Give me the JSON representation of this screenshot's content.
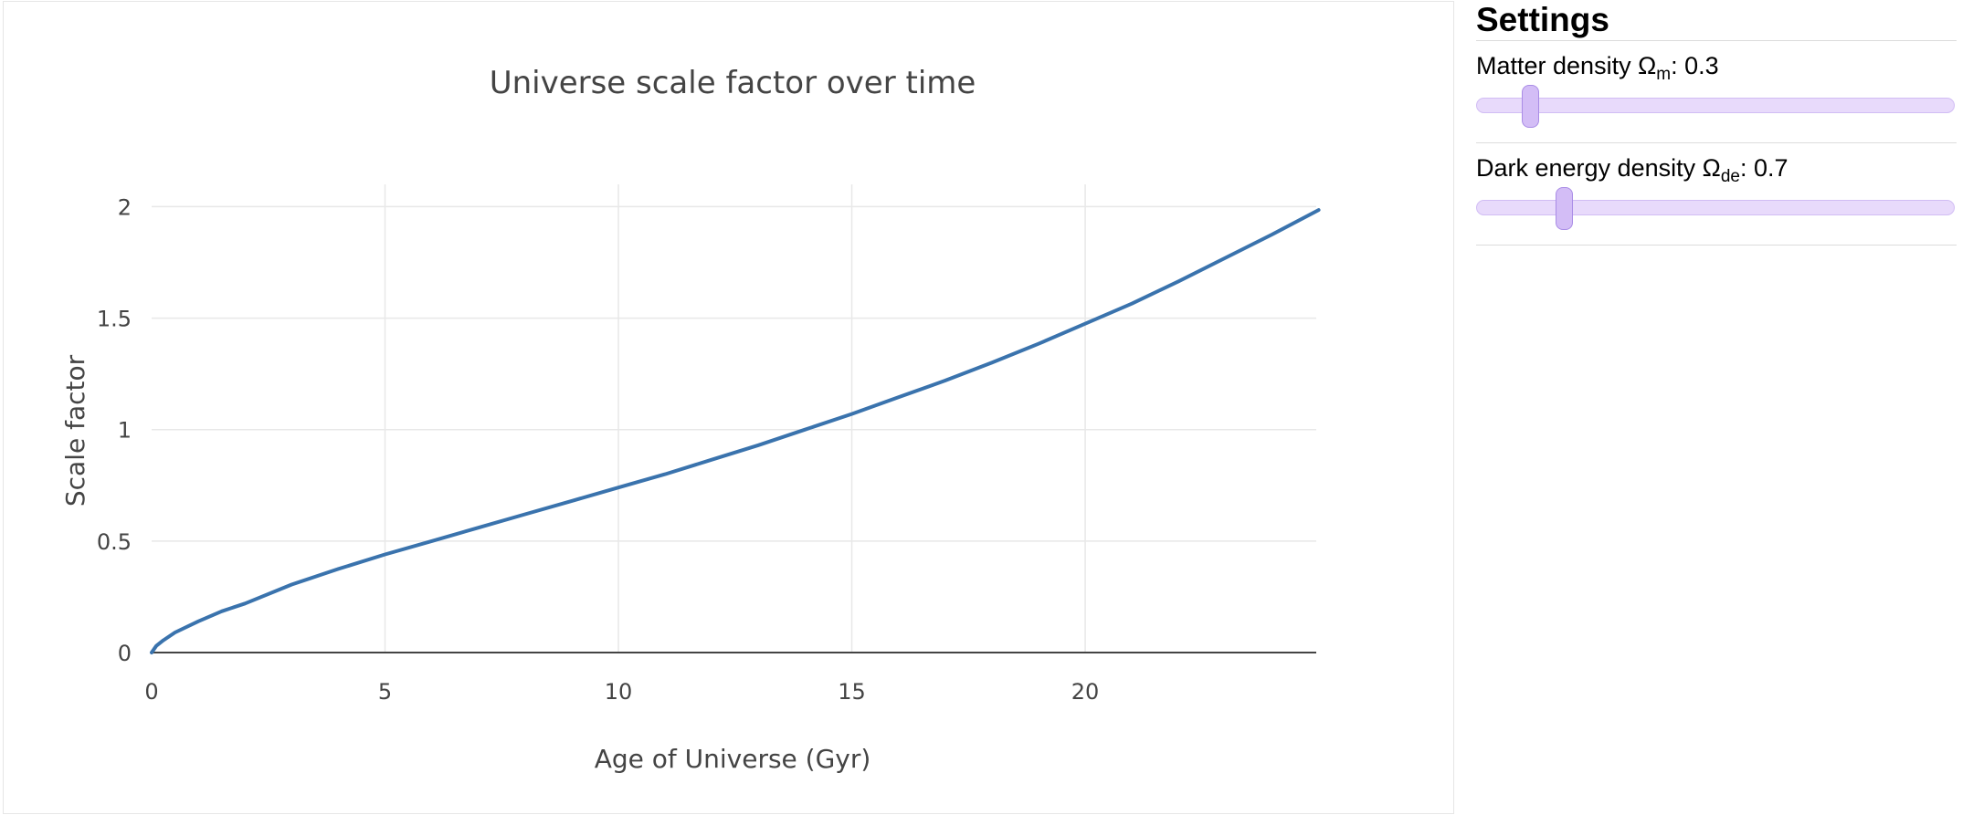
{
  "chart_data": {
    "type": "line",
    "title": "Universe scale factor over time",
    "xlabel": "Age of Universe (Gyr)",
    "ylabel": "Scale factor",
    "xlim": [
      0,
      25
    ],
    "ylim": [
      0,
      2.1
    ],
    "x_ticks": [
      0,
      5,
      10,
      15,
      20
    ],
    "x_tick_labels": [
      "0",
      "5",
      "10",
      "15",
      "20"
    ],
    "y_ticks": [
      0,
      0.5,
      1,
      1.5,
      2
    ],
    "y_tick_labels": [
      "0",
      "0.5",
      "1",
      "1.5",
      "2"
    ],
    "grid": true,
    "line_color": "#3a73ad",
    "grid_color": "#e8e8e8",
    "series": [
      {
        "x": [
          0,
          0.1,
          0.25,
          0.5,
          1,
          1.5,
          2,
          3,
          4,
          5,
          6,
          7,
          8,
          9,
          10,
          11,
          12,
          13,
          14,
          15,
          16,
          17,
          18,
          19,
          20,
          21,
          22,
          23,
          24,
          25
        ],
        "y": [
          0,
          0.03,
          0.055,
          0.09,
          0.14,
          0.185,
          0.22,
          0.305,
          0.375,
          0.44,
          0.5,
          0.56,
          0.62,
          0.68,
          0.74,
          0.8,
          0.865,
          0.93,
          1.0,
          1.07,
          1.145,
          1.22,
          1.3,
          1.385,
          1.475,
          1.565,
          1.665,
          1.77,
          1.875,
          1.985
        ]
      }
    ]
  },
  "settings": {
    "title": "Settings",
    "sliders": [
      {
        "label": "Matter density Ω",
        "sub": "m",
        "suffix": ":",
        "value": "0.3",
        "min": 0,
        "max": 5,
        "level": 0.3
      },
      {
        "label": "Dark energy density Ω",
        "sub": "de",
        "suffix": ":",
        "value": "0.7",
        "min": 0,
        "max": 5,
        "level": 0.7
      }
    ]
  },
  "colors": {
    "slider_track": "#e8dafb",
    "slider_handle": "#d3bdf6"
  }
}
